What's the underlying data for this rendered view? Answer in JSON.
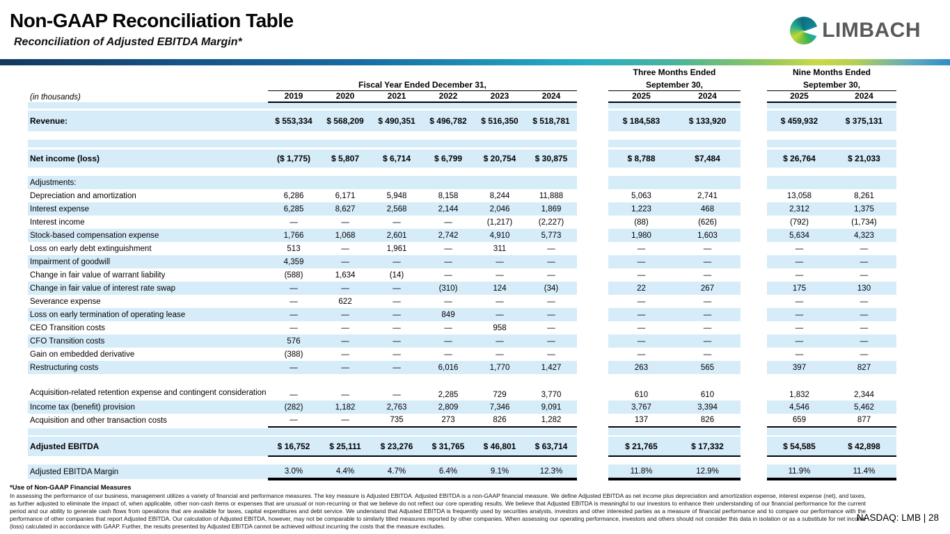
{
  "header": {
    "title": "Non-GAAP Reconciliation Table",
    "subtitle": "Reconciliation of Adjusted EBITDA Margin*",
    "logo_word": "LIMBACH"
  },
  "colors": {
    "row_highlight": "#d6ecf9",
    "brand_green": "#39b54a",
    "brand_teal": "#13899b",
    "bar_navy": "#13395f"
  },
  "table": {
    "unit_label": "(in thousands)",
    "groups": {
      "fiscal": {
        "label": "Fiscal Year Ended December 31,",
        "years": [
          "2019",
          "2020",
          "2021",
          "2022",
          "2023",
          "2024"
        ]
      },
      "three_months": {
        "label": "Three Months Ended",
        "sublabel": "September 30,",
        "years": [
          "2025",
          "2024"
        ]
      },
      "nine_months": {
        "label": "Nine  Months Ended",
        "sublabel": "September 30,",
        "years": [
          "2025",
          "2024"
        ]
      }
    },
    "rows": [
      {
        "kind": "revenue",
        "hl": true,
        "label": "Revenue:",
        "fy": [
          "$ 553,334",
          "$ 568,209",
          "$ 490,351",
          "$ 496,782",
          "$ 516,350",
          "$ 518,781"
        ],
        "q3": [
          "$ 184,583",
          "$ 133,920"
        ],
        "m9": [
          "$ 459,932",
          "$ 375,131"
        ]
      },
      {
        "kind": "netincome",
        "hl": true,
        "label": "Net income (loss)",
        "fy": [
          "($ 1,775)",
          "$ 5,807",
          "$ 6,714",
          "$ 6,799",
          "$ 20,754",
          "$ 30,875"
        ],
        "q3": [
          "$ 8,788",
          "$7,484"
        ],
        "m9": [
          "$ 26,764",
          "$ 21,033"
        ]
      },
      {
        "kind": "section",
        "hl": true,
        "label": "Adjustments:",
        "fy": [
          "",
          "",
          "",
          "",
          "",
          ""
        ],
        "q3": [
          "",
          ""
        ],
        "m9": [
          "",
          ""
        ]
      },
      {
        "kind": "item",
        "hl": false,
        "label": "Depreciation and amortization",
        "fy": [
          "6,286",
          "6,171",
          "5,948",
          "8,158",
          "8,244",
          "11,888"
        ],
        "q3": [
          "5,063",
          "2,741"
        ],
        "m9": [
          "13,058",
          "8,261"
        ]
      },
      {
        "kind": "item",
        "hl": true,
        "label": "Interest expense",
        "fy": [
          "6,285",
          "8,627",
          "2,568",
          "2,144",
          "2,046",
          "1,869"
        ],
        "q3": [
          "1,223",
          "468"
        ],
        "m9": [
          "2,312",
          "1,375"
        ]
      },
      {
        "kind": "item",
        "hl": false,
        "label": "Interest income",
        "fy": [
          "—",
          "—",
          "—",
          "—",
          "(1,217)",
          "(2,227)"
        ],
        "q3": [
          "(88)",
          "(626)"
        ],
        "m9": [
          "(792)",
          "(1,734)"
        ]
      },
      {
        "kind": "item",
        "hl": true,
        "label": "Stock-based compensation expense",
        "fy": [
          "1,766",
          "1,068",
          "2,601",
          "2,742",
          "4,910",
          "5,773"
        ],
        "q3": [
          "1,980",
          "1,603"
        ],
        "m9": [
          "5,634",
          "4,323"
        ]
      },
      {
        "kind": "item",
        "hl": false,
        "label": "Loss on early debt extinguishment",
        "fy": [
          "513",
          "—",
          "1,961",
          "—",
          "311",
          "—"
        ],
        "q3": [
          "—",
          "—"
        ],
        "m9": [
          "—",
          "—"
        ]
      },
      {
        "kind": "item",
        "hl": true,
        "label": "Impairment of goodwill",
        "fy": [
          "4,359",
          "—",
          "—",
          "—",
          "—",
          "—"
        ],
        "q3": [
          "—",
          "—"
        ],
        "m9": [
          "—",
          "—"
        ]
      },
      {
        "kind": "item",
        "hl": false,
        "label": "Change in fair value of warrant liability",
        "fy": [
          "(588)",
          "1,634",
          "(14)",
          "—",
          "—",
          "—"
        ],
        "q3": [
          "—",
          "—"
        ],
        "m9": [
          "—",
          "—"
        ]
      },
      {
        "kind": "item",
        "hl": true,
        "label": "Change in fair value of interest rate swap",
        "fy": [
          "—",
          "—",
          "—",
          "(310)",
          "124",
          "(34)"
        ],
        "q3": [
          "22",
          "267"
        ],
        "m9": [
          "175",
          "130"
        ]
      },
      {
        "kind": "item",
        "hl": false,
        "label": "Severance expense",
        "fy": [
          "—",
          "622",
          "—",
          "—",
          "—",
          "—"
        ],
        "q3": [
          "—",
          "—"
        ],
        "m9": [
          "—",
          "—"
        ]
      },
      {
        "kind": "item",
        "hl": true,
        "label": "Loss on early termination of operating lease",
        "fy": [
          "—",
          "—",
          "—",
          "849",
          "—",
          "—"
        ],
        "q3": [
          "—",
          "—"
        ],
        "m9": [
          "—",
          "—"
        ]
      },
      {
        "kind": "item",
        "hl": false,
        "label": "CEO Transition costs",
        "fy": [
          "—",
          "—",
          "—",
          "—",
          "958",
          "—"
        ],
        "q3": [
          "—",
          "—"
        ],
        "m9": [
          "—",
          "—"
        ]
      },
      {
        "kind": "item",
        "hl": true,
        "label": "CFO Transition costs",
        "fy": [
          "576",
          "—",
          "—",
          "—",
          "—",
          "—"
        ],
        "q3": [
          "—",
          "—"
        ],
        "m9": [
          "—",
          "—"
        ]
      },
      {
        "kind": "item",
        "hl": false,
        "label": "Gain on embedded derivative",
        "fy": [
          "(388)",
          "—",
          "—",
          "—",
          "—",
          "—"
        ],
        "q3": [
          "—",
          "—"
        ],
        "m9": [
          "—",
          "—"
        ]
      },
      {
        "kind": "item",
        "hl": true,
        "label": "Restructuring costs",
        "fy": [
          "—",
          "—",
          "—",
          "6,016",
          "1,770",
          "1,427"
        ],
        "q3": [
          "263",
          "565"
        ],
        "m9": [
          "397",
          "827"
        ]
      },
      {
        "kind": "item2",
        "hl": false,
        "label": "Acquisition-related retention expense and contingent consideration",
        "fy": [
          "—",
          "—",
          "—",
          "2,285",
          "729",
          "3,770"
        ],
        "q3": [
          "610",
          "610"
        ],
        "m9": [
          "1,832",
          "2,344"
        ]
      },
      {
        "kind": "item",
        "hl": true,
        "label": "Income tax (benefit) provision",
        "fy": [
          "(282)",
          "1,182",
          "2,763",
          "2,809",
          "7,346",
          "9,091"
        ],
        "q3": [
          "3,767",
          "3,394"
        ],
        "m9": [
          "4,546",
          "5,462"
        ]
      },
      {
        "kind": "lastitem",
        "hl": false,
        "label": "Acquisition and other transaction costs",
        "fy": [
          "—",
          "—",
          "735",
          "273",
          "826",
          "1,282"
        ],
        "q3": [
          "137",
          "826"
        ],
        "m9": [
          "659",
          "877"
        ]
      },
      {
        "kind": "total",
        "hl": true,
        "label": "Adjusted EBITDA",
        "fy": [
          "$ 16,752",
          "$ 25,111",
          "$ 23,276",
          "$ 31,765",
          "$ 46,801",
          "$ 63,714"
        ],
        "q3": [
          "$ 21,765",
          "$ 17,332"
        ],
        "m9": [
          "$ 54,585",
          "$ 42,898"
        ]
      },
      {
        "kind": "margin",
        "hl": true,
        "label": "Adjusted EBITDA Margin",
        "fy": [
          "3.0%",
          "4.4%",
          "4.7%",
          "6.4%",
          "9.1%",
          "12.3%"
        ],
        "q3": [
          "11.8%",
          "12.9%"
        ],
        "m9": [
          "11.9%",
          "11.4%"
        ]
      }
    ]
  },
  "footer": {
    "note_title": "*Use of Non-GAAP Financial Measures",
    "note_body": "In assessing the performance of our business, management utilizes a variety of financial and performance measures. The key measure is Adjusted EBITDA. Adjusted EBITDA is a non-GAAP financial measure. We define Adjusted EBITDA as net income plus depreciation and amortization expense, interest expense (net), and taxes, as further adjusted to eliminate the impact of, when applicable, other non-cash items or expenses that are unusual or non-recurring or that we believe do not reflect our core operating results. We believe that Adjusted EBITDA is meaningful to our investors to enhance their understanding of our financial performance for the current period and our ability to generate cash flows from operations that are available for taxes, capital expenditures and debt service. We understand that Adjusted EBITDA is frequently used by securities analysts, investors and other interested parties as a measure of financial performance and to compare our performance with the performance of other companies that report Adjusted EBITDA. Our calculation of Adjusted EBITDA, however, may not be comparable to similarly titled measures reported by other companies. When assessing our operating performance, investors and others should not consider this data in isolation or as a substitute for net income (loss) calculated in accordance with GAAP. Further, the results presented by Adjusted EBITDA cannot be achieved without incurring the costs that the measure excludes.",
    "ticker": "NASDAQ: LMB | 28"
  }
}
